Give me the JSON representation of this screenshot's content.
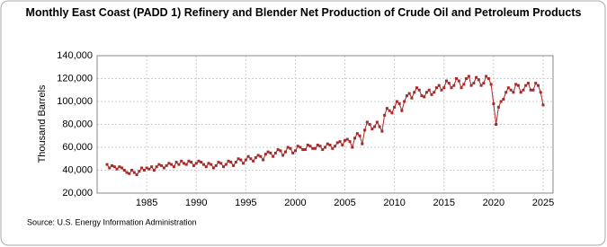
{
  "chart_data": {
    "type": "line",
    "title": "Monthly East Coast (PADD 1) Refinery and Blender Net Production of Crude Oil and Petroleum Products",
    "y_label": "Thousand Barrels",
    "source": "Source: U.S. Energy Information Administration",
    "xlim": [
      1980,
      2026
    ],
    "xticks": [
      1985,
      1990,
      1995,
      2000,
      2005,
      2010,
      2015,
      2020,
      2025
    ],
    "ylim": [
      20000,
      140000
    ],
    "yticks": [
      {
        "value": 20000,
        "label": "20,000"
      },
      {
        "value": 40000,
        "label": "40,000"
      },
      {
        "value": 60000,
        "label": "60,000"
      },
      {
        "value": 80000,
        "label": "80,000"
      },
      {
        "value": 100000,
        "label": "100,000"
      },
      {
        "value": 120000,
        "label": "120,000"
      },
      {
        "value": 140000,
        "label": "140,000"
      }
    ],
    "grid": true,
    "x": [
      1981,
      1981.25,
      1981.5,
      1981.75,
      1982,
      1982.25,
      1982.5,
      1982.75,
      1983,
      1983.25,
      1983.5,
      1983.75,
      1984,
      1984.25,
      1984.5,
      1984.75,
      1985,
      1985.25,
      1985.5,
      1985.75,
      1986,
      1986.25,
      1986.5,
      1986.75,
      1987,
      1987.25,
      1987.5,
      1987.75,
      1988,
      1988.25,
      1988.5,
      1988.75,
      1989,
      1989.25,
      1989.5,
      1989.75,
      1990,
      1990.25,
      1990.5,
      1990.75,
      1991,
      1991.25,
      1991.5,
      1991.75,
      1992,
      1992.25,
      1992.5,
      1992.75,
      1993,
      1993.25,
      1993.5,
      1993.75,
      1994,
      1994.25,
      1994.5,
      1994.75,
      1995,
      1995.25,
      1995.5,
      1995.75,
      1996,
      1996.25,
      1996.5,
      1996.75,
      1997,
      1997.25,
      1997.5,
      1997.75,
      1998,
      1998.25,
      1998.5,
      1998.75,
      1999,
      1999.25,
      1999.5,
      1999.75,
      2000,
      2000.25,
      2000.5,
      2000.75,
      2001,
      2001.25,
      2001.5,
      2001.75,
      2002,
      2002.25,
      2002.5,
      2002.75,
      2003,
      2003.25,
      2003.5,
      2003.75,
      2004,
      2004.25,
      2004.5,
      2004.75,
      2005,
      2005.25,
      2005.5,
      2005.75,
      2006,
      2006.25,
      2006.5,
      2006.75,
      2007,
      2007.25,
      2007.5,
      2007.75,
      2008,
      2008.25,
      2008.5,
      2008.75,
      2009,
      2009.25,
      2009.5,
      2009.75,
      2010,
      2010.25,
      2010.5,
      2010.75,
      2011,
      2011.25,
      2011.5,
      2011.75,
      2012,
      2012.25,
      2012.5,
      2012.75,
      2013,
      2013.25,
      2013.5,
      2013.75,
      2014,
      2014.25,
      2014.5,
      2014.75,
      2015,
      2015.25,
      2015.5,
      2015.75,
      2016,
      2016.25,
      2016.5,
      2016.75,
      2017,
      2017.25,
      2017.5,
      2017.75,
      2018,
      2018.25,
      2018.5,
      2018.75,
      2019,
      2019.25,
      2019.5,
      2019.75,
      2020,
      2020.25,
      2020.5,
      2020.75,
      2021,
      2021.25,
      2021.5,
      2021.75,
      2022,
      2022.25,
      2022.5,
      2022.75,
      2023,
      2023.25,
      2023.5,
      2023.75,
      2024,
      2024.25,
      2024.5,
      2024.75,
      2025
    ],
    "series": [
      {
        "name": "East Coast (PADD 1)",
        "color": "#a52a2a",
        "values": [
          45000,
          42000,
          44000,
          43000,
          41000,
          43000,
          42000,
          40000,
          38000,
          37000,
          40000,
          38000,
          36000,
          39000,
          42000,
          40000,
          42000,
          41000,
          43000,
          40000,
          43000,
          45000,
          44000,
          42000,
          44000,
          46000,
          45000,
          43000,
          47000,
          45000,
          48000,
          46000,
          45000,
          48000,
          47000,
          44000,
          46000,
          48000,
          47000,
          45000,
          43000,
          46000,
          45000,
          42000,
          44000,
          47000,
          46000,
          43000,
          45000,
          48000,
          47000,
          44000,
          47000,
          50000,
          49000,
          46000,
          49000,
          52000,
          50000,
          48000,
          51000,
          53000,
          52000,
          49000,
          54000,
          56000,
          55000,
          52000,
          55000,
          58000,
          57000,
          53000,
          56000,
          60000,
          59000,
          55000,
          57000,
          61000,
          60000,
          58000,
          58000,
          62000,
          61000,
          59000,
          59000,
          62000,
          61000,
          58000,
          60000,
          63000,
          62000,
          59000,
          61000,
          64000,
          65000,
          62000,
          66000,
          67000,
          65000,
          60000,
          68000,
          72000,
          70000,
          63000,
          75000,
          82000,
          80000,
          76000,
          78000,
          82000,
          78000,
          74000,
          88000,
          94000,
          92000,
          90000,
          95000,
          100000,
          98000,
          92000,
          100000,
          105000,
          107000,
          103000,
          108000,
          112000,
          110000,
          105000,
          104000,
          108000,
          110000,
          106000,
          108000,
          112000,
          114000,
          110000,
          112000,
          118000,
          116000,
          112000,
          114000,
          120000,
          118000,
          112000,
          115000,
          120000,
          122000,
          114000,
          116000,
          121000,
          119000,
          114000,
          116000,
          122000,
          120000,
          115000,
          98000,
          80000,
          95000,
          100000,
          102000,
          108000,
          112000,
          110000,
          108000,
          115000,
          114000,
          108000,
          110000,
          114000,
          116000,
          110000,
          110000,
          116000,
          114000,
          108000,
          97000
        ]
      }
    ]
  }
}
